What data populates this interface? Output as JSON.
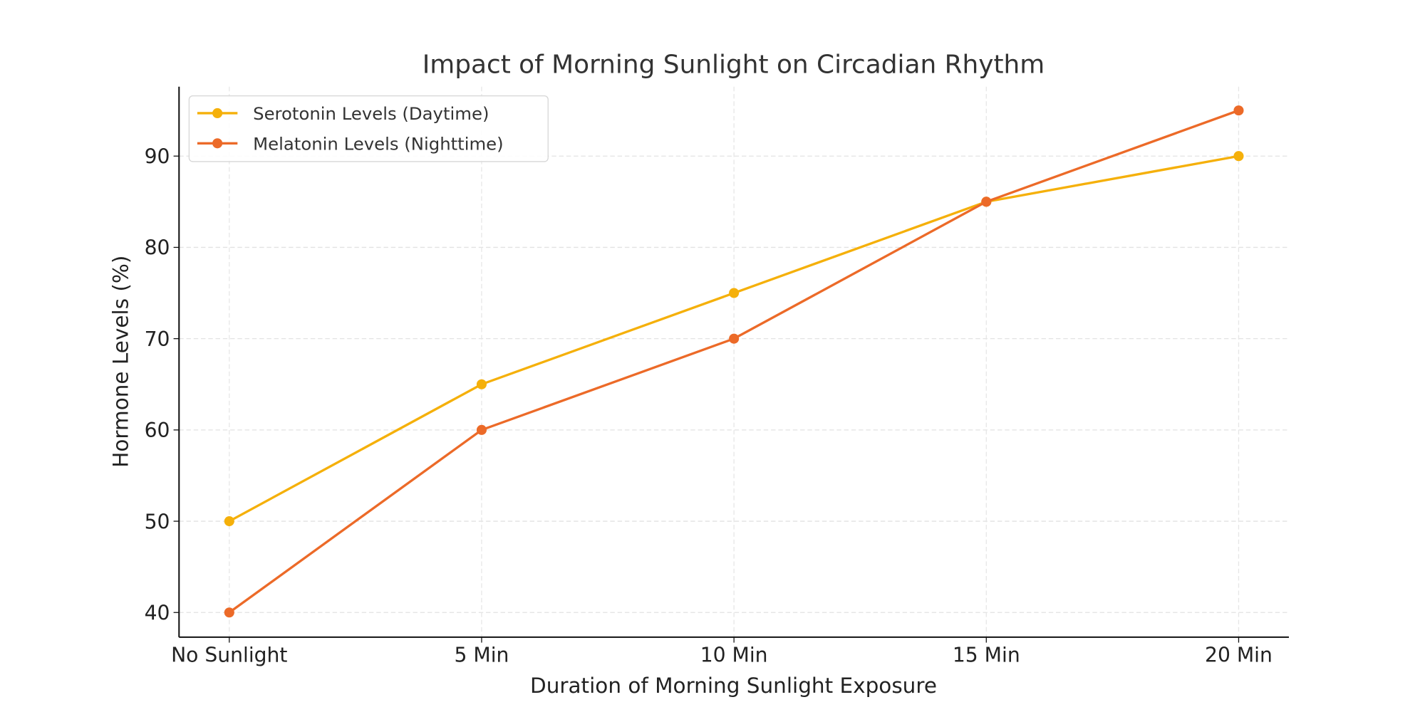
{
  "chart_data": {
    "type": "line",
    "title": "Impact of Morning Sunlight on Circadian Rhythm",
    "xlabel": "Duration of Morning Sunlight Exposure",
    "ylabel": "Hormone Levels (%)",
    "categories": [
      "No Sunlight",
      "5 Min",
      "10 Min",
      "15 Min",
      "20 Min"
    ],
    "ylim": [
      37.3,
      97.6
    ],
    "yticks": [
      40,
      50,
      60,
      70,
      80,
      90
    ],
    "grid": true,
    "legend_position": "top-left",
    "series": [
      {
        "name": "Serotonin Levels (Daytime)",
        "values": [
          50,
          65,
          75,
          85,
          90
        ],
        "color": "#F5B00A"
      },
      {
        "name": "Melatonin Levels (Nighttime)",
        "values": [
          40,
          60,
          70,
          85,
          95
        ],
        "color": "#EC6A28"
      }
    ]
  }
}
